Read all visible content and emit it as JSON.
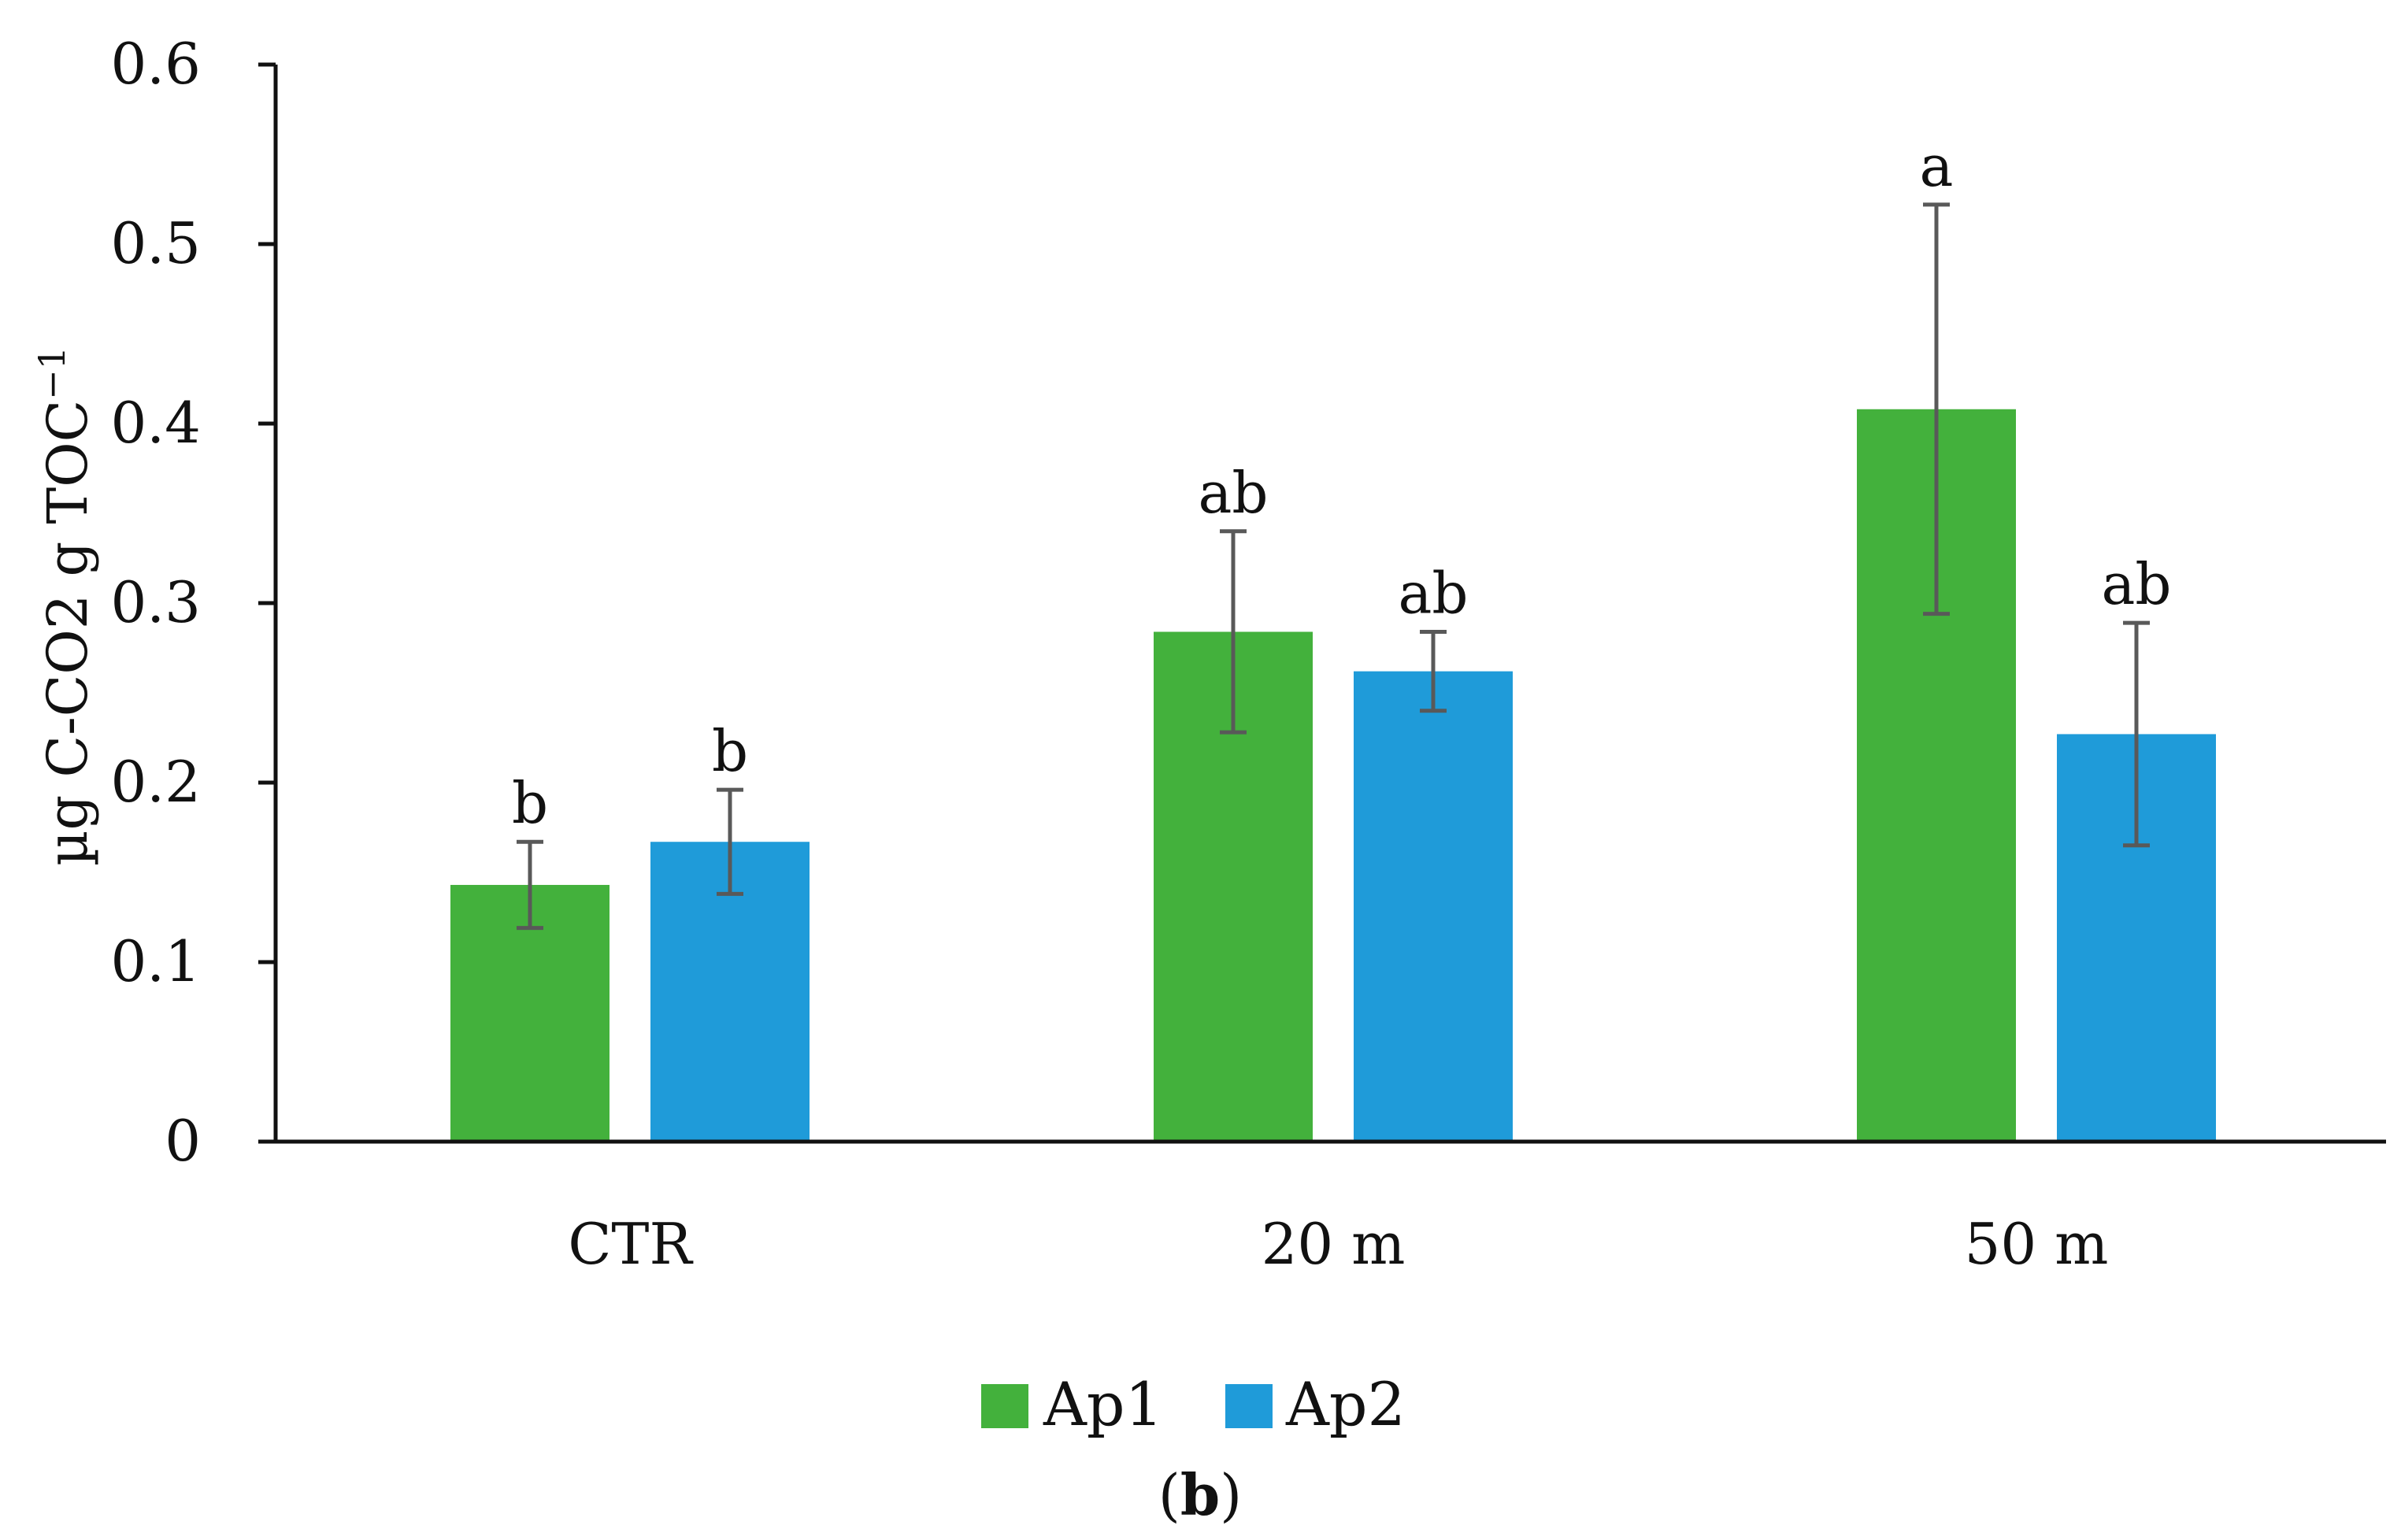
{
  "chart_data": {
    "type": "bar",
    "title": "",
    "caption": {
      "open": "(",
      "letter": "b",
      "close": ")"
    },
    "xlabel": "",
    "ylabel": "µg C-CO2 g TOC",
    "ylabel_superscript": "−1",
    "ylim": [
      0,
      0.6
    ],
    "yticks": [
      0,
      0.1,
      0.2,
      0.3,
      0.4,
      0.5,
      0.6
    ],
    "ytick_labels": [
      "0",
      "0.1",
      "0.2",
      "0.3",
      "0.4",
      "0.5",
      "0.6"
    ],
    "categories": [
      "CTR",
      "20 m",
      "50 m"
    ],
    "series": [
      {
        "name": "Ap1",
        "color": "#43b13c",
        "values": [
          0.143,
          0.284,
          0.408
        ],
        "error_low": [
          0.119,
          0.228,
          0.294
        ],
        "error_high": [
          0.167,
          0.34,
          0.522
        ],
        "significance": [
          "b",
          "ab",
          "a"
        ]
      },
      {
        "name": "Ap2",
        "color": "#1f9bd9",
        "values": [
          0.167,
          0.262,
          0.227
        ],
        "error_low": [
          0.138,
          0.24,
          0.165
        ],
        "error_high": [
          0.196,
          0.284,
          0.289
        ],
        "significance": [
          "b",
          "ab",
          "ab"
        ]
      }
    ],
    "legend": {
      "position": "bottom-center",
      "entries": [
        "Ap1",
        "Ap2"
      ]
    },
    "grid": false,
    "axis_color": "#111111",
    "error_bar_color": "#595959"
  }
}
